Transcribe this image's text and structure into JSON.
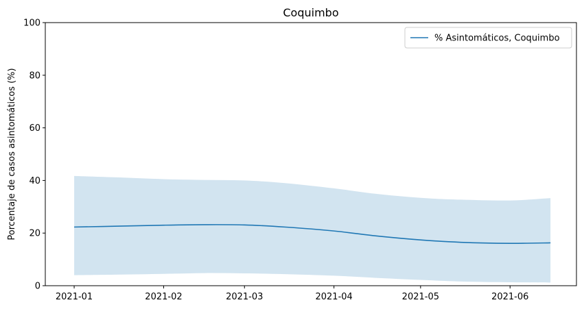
{
  "chart_data": {
    "type": "line",
    "title": "Coquimbo",
    "xlabel": "",
    "ylabel": "Porcentaje de casos asintomáticos (%)",
    "ylim": [
      0,
      100
    ],
    "yticks": [
      0,
      20,
      40,
      60,
      80,
      100
    ],
    "xticks": [
      "2021-01",
      "2021-02",
      "2021-03",
      "2021-04",
      "2021-05",
      "2021-06"
    ],
    "xlim": [
      "2020-12-22",
      "2021-06-24"
    ],
    "legend_position": "top-right",
    "grid": false,
    "series": [
      {
        "name": "% Asintomáticos, Coquimbo",
        "color": "#1f77b4",
        "band_color": "#1f77b4",
        "points": [
          {
            "date": "2021-01-01",
            "y": 22.3,
            "lower": 4.0,
            "upper": 41.7
          },
          {
            "date": "2021-01-15",
            "y": 22.6,
            "lower": 4.2,
            "upper": 41.2
          },
          {
            "date": "2021-02-01",
            "y": 23.0,
            "lower": 4.5,
            "upper": 40.5
          },
          {
            "date": "2021-02-15",
            "y": 23.2,
            "lower": 4.8,
            "upper": 40.2
          },
          {
            "date": "2021-03-01",
            "y": 23.1,
            "lower": 4.7,
            "upper": 40.0
          },
          {
            "date": "2021-03-15",
            "y": 22.3,
            "lower": 4.4,
            "upper": 39.0
          },
          {
            "date": "2021-04-01",
            "y": 20.8,
            "lower": 3.8,
            "upper": 37.0
          },
          {
            "date": "2021-04-15",
            "y": 19.0,
            "lower": 3.0,
            "upper": 35.0
          },
          {
            "date": "2021-05-01",
            "y": 17.4,
            "lower": 2.2,
            "upper": 33.4
          },
          {
            "date": "2021-05-15",
            "y": 16.5,
            "lower": 1.6,
            "upper": 32.7
          },
          {
            "date": "2021-06-01",
            "y": 16.1,
            "lower": 1.3,
            "upper": 32.4
          },
          {
            "date": "2021-06-15",
            "y": 16.3,
            "lower": 1.2,
            "upper": 33.3
          }
        ]
      }
    ]
  }
}
